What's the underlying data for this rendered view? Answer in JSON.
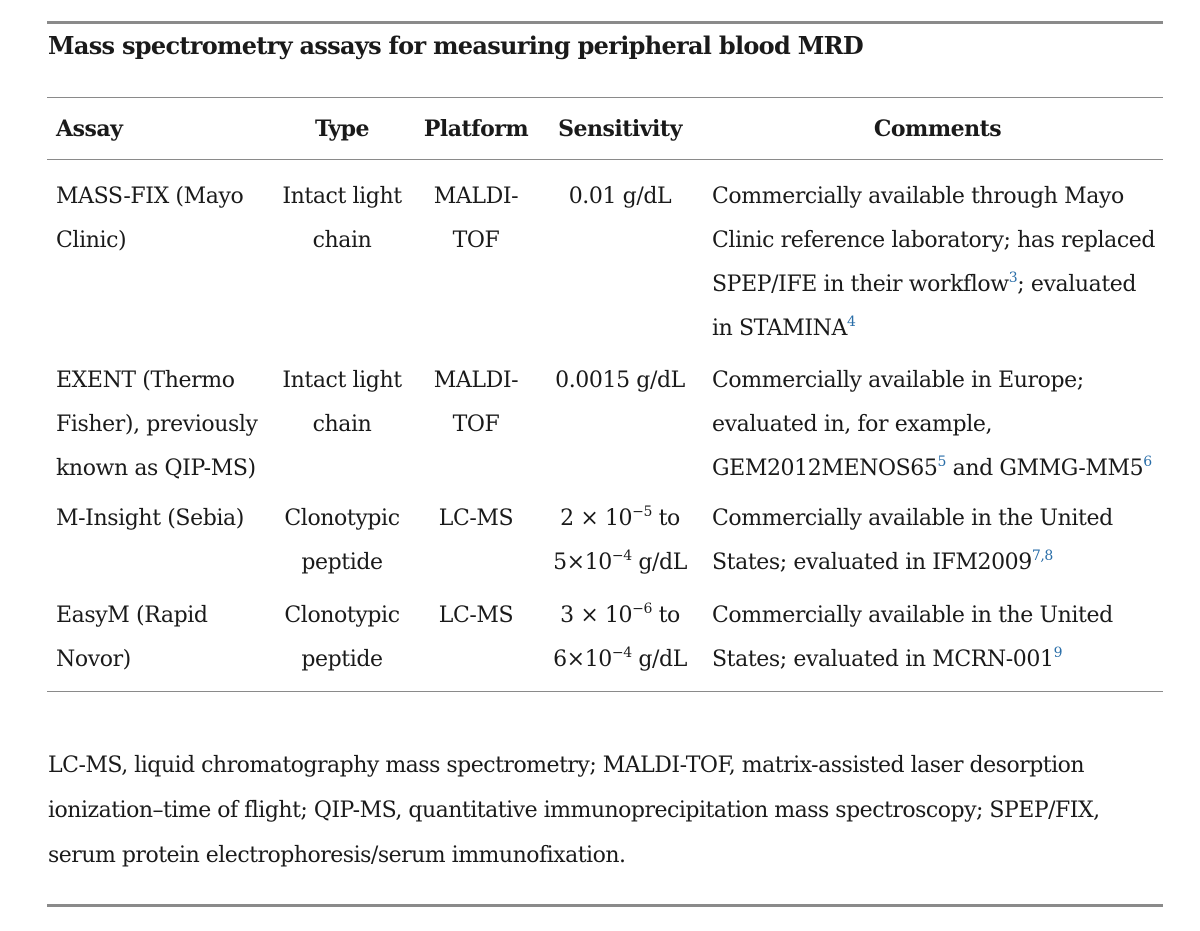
{
  "title": "Mass spectrometry assays for measuring peripheral blood MRD",
  "table": {
    "headers": {
      "assay": "Assay",
      "type": "Type",
      "platform": "Platform",
      "sensitivity": "Sensitivity",
      "comments": "Comments"
    },
    "rows": [
      {
        "assay": [
          "MASS-FIX (Mayo",
          "Clinic)"
        ],
        "type": [
          "Intact light",
          "chain"
        ],
        "platform": [
          "MALDI-",
          "TOF"
        ],
        "sensitivity": [
          "0.01 g/dL"
        ],
        "comments": {
          "l1": "Commercially available through Mayo",
          "l2": "Clinic reference laboratory; has replaced",
          "l3a": "SPEP/IFE in their workflow",
          "l3ref": "3",
          "l3b": "; evaluated",
          "l4a": "in STAMINA",
          "l4ref": "4"
        }
      },
      {
        "assay": [
          "EXENT (Thermo",
          "Fisher), previously",
          "known as QIP-MS)"
        ],
        "type": [
          "Intact light",
          "chain"
        ],
        "platform": [
          "MALDI-",
          "TOF"
        ],
        "sensitivity": [
          "0.0015 g/dL"
        ],
        "comments": {
          "l1": "Commercially available in Europe;",
          "l2": "evaluated in, for example,",
          "l3a": "GEM2012MENOS65",
          "l3ref1": "5",
          "l3b": " and GMMG-MM5",
          "l3ref2": "6"
        }
      },
      {
        "assay": [
          "M-Insight (Sebia)"
        ],
        "type": [
          "Clonotypic",
          "peptide"
        ],
        "platform": [
          "LC-MS"
        ],
        "sensitivity": {
          "l1a": "2 × 10",
          "l1exp": "−5",
          "l1b": " to",
          "l2a": "5×10",
          "l2exp": "−4",
          "l2b": " g/dL"
        },
        "comments": {
          "l1": "Commercially available in the United",
          "l2a": "States; evaluated in IFM2009",
          "l2ref": "7,8"
        }
      },
      {
        "assay": [
          "EasyM (Rapid",
          "Novor)"
        ],
        "type": [
          "Clonotypic",
          "peptide"
        ],
        "platform": [
          "LC-MS"
        ],
        "sensitivity": {
          "l1a": "3 × 10",
          "l1exp": "−6",
          "l1b": " to",
          "l2a": "6×10",
          "l2exp": "−4",
          "l2b": " g/dL"
        },
        "comments": {
          "l1": "Commercially available in the United",
          "l2a": "States; evaluated in MCRN-001",
          "l2ref": "9"
        }
      }
    ]
  },
  "footnote": "LC-MS, liquid chromatography mass spectrometry; MALDI-TOF, matrix-assisted laser desorption ionization–time of flight; QIP-MS, quantitative immunoprecipitation mass spectroscopy; SPEP/FIX, serum protein electrophoresis/serum immunofixation.",
  "colors": {
    "text": "#1a1a1a",
    "reference_link": "#2a6ea8",
    "rule": "#8a8a8a"
  }
}
